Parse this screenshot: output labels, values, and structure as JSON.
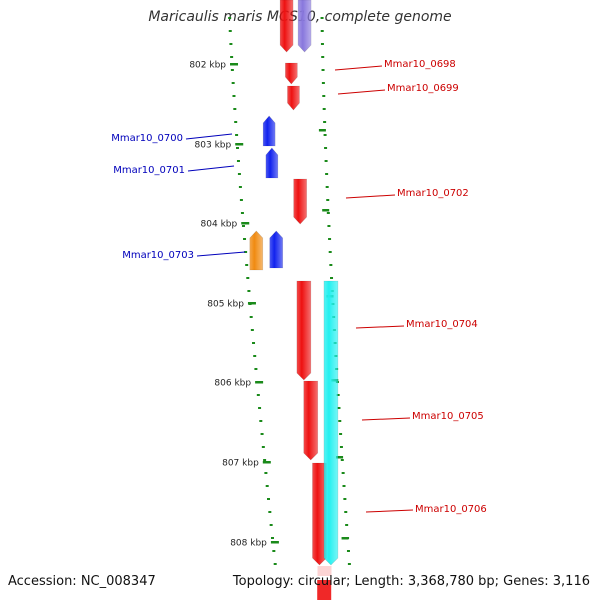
{
  "title": "Maricaulis maris MCS10, complete genome",
  "footer": {
    "accession": "Accession: NC_008347",
    "topology": "Topology: circular; Length: 3,368,780 bp; Genes: 3,116"
  },
  "colors": {
    "backbone": "#8a8a8a",
    "tick": "#1a8a1a",
    "gene_forward_label": "#cc0000",
    "gene_reverse_label": "#0000bb",
    "red": "#ee1111",
    "blue": "#1122ee",
    "orange": "#f08a10",
    "cyan": "#22f0f0",
    "lavender": "#8877dd"
  },
  "scale_labels": [
    {
      "kbp": 802,
      "text": "802 kbp"
    },
    {
      "kbp": 803,
      "text": "803 kbp"
    },
    {
      "kbp": 804,
      "text": "804 kbp"
    },
    {
      "kbp": 805,
      "text": "805 kbp"
    },
    {
      "kbp": 806,
      "text": "806 kbp"
    },
    {
      "kbp": 807,
      "text": "807 kbp"
    },
    {
      "kbp": 808,
      "text": "808 kbp"
    }
  ],
  "gene_labels": [
    {
      "id": "g0698",
      "text": "Mmar10_0698",
      "side": "right",
      "color": "red"
    },
    {
      "id": "g0699",
      "text": "Mmar10_0699",
      "side": "right",
      "color": "red"
    },
    {
      "id": "g0700",
      "text": "Mmar10_0700",
      "side": "left",
      "color": "blue"
    },
    {
      "id": "g0701",
      "text": "Mmar10_0701",
      "side": "left",
      "color": "blue"
    },
    {
      "id": "g0702",
      "text": "Mmar10_0702",
      "side": "right",
      "color": "red"
    },
    {
      "id": "g0703",
      "text": "Mmar10_0703",
      "side": "left",
      "color": "blue"
    },
    {
      "id": "g0704",
      "text": "Mmar10_0704",
      "side": "right",
      "color": "red"
    },
    {
      "id": "g0705",
      "text": "Mmar10_0705",
      "side": "right",
      "color": "red"
    },
    {
      "id": "g0706",
      "text": "Mmar10_0706",
      "side": "right",
      "color": "red"
    }
  ]
}
